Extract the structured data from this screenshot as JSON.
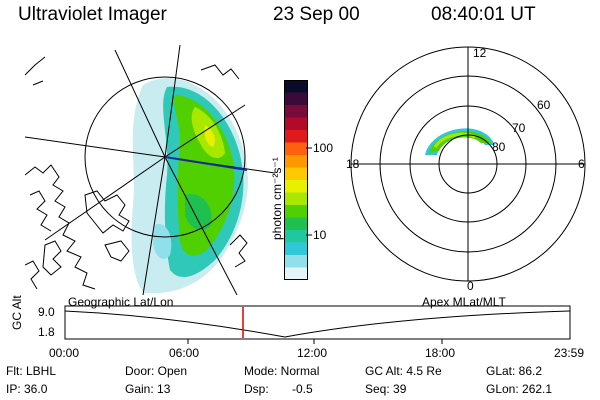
{
  "header": {
    "instrument": "Ultraviolet Imager",
    "date": "23 Sep 00",
    "time": "08:40:01 UT"
  },
  "colorbar": {
    "unit_label": "photon cm⁻²s⁻¹",
    "ticks": [
      "100",
      "10"
    ],
    "colors": [
      "#0a0a2a",
      "#3a0a3a",
      "#7a0a3a",
      "#b40a2a",
      "#e01a1a",
      "#ff6010",
      "#ff9800",
      "#ffc800",
      "#e8f000",
      "#a8e800",
      "#50d000",
      "#20c050",
      "#20c8a0",
      "#30c8d8",
      "#90e0ec",
      "#e4f4f8"
    ]
  },
  "left_panel": {
    "label": "Geographic Lat/Lon"
  },
  "right_panel": {
    "label": "Apex MLat/MLT",
    "mlt_labels": [
      "12",
      "18",
      "6",
      "0"
    ],
    "lat_labels": [
      "60",
      "70",
      "80"
    ]
  },
  "timeline": {
    "ylabel": "GC Alt",
    "y_ticks": [
      "9.0",
      "1.8"
    ],
    "x_ticks": [
      "00:00",
      "06:00",
      "12:00",
      "18:00",
      "23:59"
    ],
    "marker_color": "#e00000"
  },
  "status": {
    "filter": "Flt: LBHL",
    "door": "Door: Open",
    "mode": "Mode: Normal",
    "gc_alt": "GC Alt: 4.5 Re",
    "glat": "GLat: 86.2",
    "ip": "IP: 36.0",
    "gain": "Gain: 13",
    "dsp_label": "Dsp:",
    "dsp_value": "-0.5",
    "seq": "Seq: 39",
    "glon": "GLon: 262.1"
  }
}
